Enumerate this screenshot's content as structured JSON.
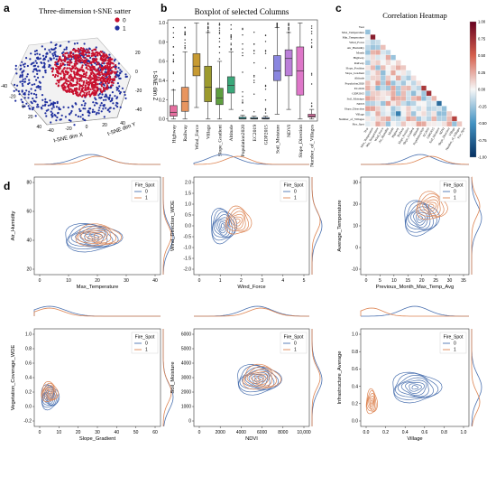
{
  "panels": {
    "a": "a",
    "b": "b",
    "c": "c",
    "d": "d"
  },
  "tsne": {
    "title": "Three-dimension t-SNE satter",
    "legend": [
      {
        "label": "0",
        "color": "#c8102e"
      },
      {
        "label": "1",
        "color": "#1f2f9e"
      }
    ],
    "xlabel": "t-SNE dim X",
    "ylabel": "t-SNE dim Y",
    "zlabel": "t-SNE dim Z",
    "x_ticks": [
      "-40",
      "-20",
      "0",
      "20",
      "40"
    ],
    "y_ticks": [
      "-40",
      "-20",
      "0",
      "20",
      "40"
    ],
    "z_ticks": [
      "20",
      "0",
      "-20",
      "-40"
    ]
  },
  "boxplot": {
    "title": "Boxplot of selected Columns",
    "y_ticks": [
      "0.0",
      "0.2",
      "0.4",
      "0.6",
      "0.8",
      "1.0"
    ],
    "columns": [
      {
        "name": "Highway",
        "color": "#e66fa0",
        "q1": 0.03,
        "median": 0.07,
        "q3": 0.14,
        "wlo": 0.0,
        "whi": 0.3
      },
      {
        "name": "Railway",
        "color": "#e8955f",
        "q1": 0.08,
        "median": 0.18,
        "q3": 0.33,
        "wlo": 0.0,
        "whi": 0.7
      },
      {
        "name": "Wind_Force",
        "color": "#c79a32",
        "q1": 0.45,
        "median": 0.55,
        "q3": 0.68,
        "wlo": 0.12,
        "whi": 1.0
      },
      {
        "name": "Village",
        "color": "#9c9a2e",
        "q1": 0.18,
        "median": 0.33,
        "q3": 0.55,
        "wlo": 0.0,
        "whi": 0.9
      },
      {
        "name": "Slope_Gradient",
        "color": "#5e9e3f",
        "q1": 0.15,
        "median": 0.22,
        "q3": 0.32,
        "wlo": 0.0,
        "whi": 0.6
      },
      {
        "name": "Altitude",
        "color": "#3aa87a",
        "q1": 0.27,
        "median": 0.35,
        "q3": 0.44,
        "wlo": 0.1,
        "whi": 0.7
      },
      {
        "name": "Population2020",
        "color": "#37a3a3",
        "q1": 0.0,
        "median": 0.005,
        "q3": 0.02,
        "wlo": 0.0,
        "whi": 0.04
      },
      {
        "name": "EC2019",
        "color": "#3f9fc4",
        "q1": 0.0,
        "median": 0.005,
        "q3": 0.015,
        "wlo": 0.0,
        "whi": 0.03
      },
      {
        "name": "GDP2015",
        "color": "#5b93d8",
        "q1": 0.0,
        "median": 0.005,
        "q3": 0.015,
        "wlo": 0.0,
        "whi": 0.03
      },
      {
        "name": "Soil_Moisture",
        "color": "#8a86e0",
        "q1": 0.4,
        "median": 0.5,
        "q3": 0.66,
        "wlo": 0.05,
        "whi": 0.95
      },
      {
        "name": "NDVI",
        "color": "#bb7fd9",
        "q1": 0.45,
        "median": 0.63,
        "q3": 0.72,
        "wlo": 0.1,
        "whi": 0.9
      },
      {
        "name": "Slope_Direction",
        "color": "#de77c9",
        "q1": 0.25,
        "median": 0.5,
        "q3": 0.75,
        "wlo": 0.0,
        "whi": 1.0
      },
      {
        "name": "Number_of_Villages",
        "color": "#e96fa9",
        "q1": 0.02,
        "median": 0.03,
        "q3": 0.05,
        "wlo": 0.0,
        "whi": 0.1
      }
    ]
  },
  "heatmap": {
    "title": "Correlation Heatmap",
    "labels": [
      "Year",
      "Max_Temperature",
      "Min_Temperature",
      "Wind_Force",
      "Air_Humidity",
      "Month",
      "Highway",
      "Railway",
      "Slope_Position",
      "Slope_Gradient",
      "Altitude",
      "Population2020",
      "EC2019",
      "GDP2015",
      "Soil_Moisture",
      "NDVI",
      "Slope_Direction",
      "Village",
      "Number_of_Villages",
      "Fire_Spot"
    ],
    "colorbar_ticks": [
      "1.00",
      "0.75",
      "0.50",
      "0.25",
      "0.00",
      "-0.25",
      "-0.50",
      "-0.75",
      "-1.00"
    ]
  },
  "kde_plots": [
    {
      "xlabel": "Max_Temperature",
      "ylabel": "Air_Humidity",
      "xticks": [
        "0",
        "10",
        "20",
        "30",
        "40"
      ],
      "yticks": [
        "20",
        "40",
        "60",
        "80"
      ],
      "legend_title": "Fire_Spot",
      "legend": [
        "0",
        "1"
      ]
    },
    {
      "xlabel": "Wind_Force",
      "ylabel": "Wind_Direction_WDE",
      "xticks": [
        "0",
        "1",
        "2",
        "3",
        "4",
        "5"
      ],
      "yticks": [
        "-2.0",
        "-1.5",
        "-1.0",
        "-0.5",
        "0.0",
        "0.5",
        "1.0",
        "1.5",
        "2.0"
      ],
      "legend_title": "Fire_Spot",
      "legend": [
        "0",
        "1"
      ]
    },
    {
      "xlabel": "Previous_Month_Max_Temp_Avg",
      "ylabel": "Average_Temperature",
      "xticks": [
        "0",
        "5",
        "10",
        "15",
        "20",
        "25",
        "30",
        "35"
      ],
      "yticks": [
        "-10",
        "0",
        "10",
        "20",
        "30"
      ],
      "legend_title": "Fire_Spot",
      "legend": [
        "0",
        "1"
      ]
    },
    {
      "xlabel": "Slope_Gradient",
      "ylabel": "Vegetation_Coverage_WDE",
      "xticks": [
        "0",
        "10",
        "20",
        "30",
        "40",
        "50",
        "60"
      ],
      "yticks": [
        "-0.2",
        "0.0",
        "0.2",
        "0.4",
        "0.6",
        "0.8",
        "1.0"
      ],
      "legend_title": "Fire_Spot",
      "legend": [
        "0",
        "1"
      ]
    },
    {
      "xlabel": "NDVI",
      "ylabel": "Soil_Moisture",
      "xticks": [
        "0",
        "2000",
        "4000",
        "6000",
        "8000",
        "10,000"
      ],
      "yticks": [
        "0",
        "1000",
        "2000",
        "3000",
        "4000",
        "5000",
        "6000"
      ],
      "legend_title": "Fire_Spot",
      "legend": [
        "0",
        "1"
      ]
    },
    {
      "xlabel": "Village",
      "ylabel": "Infrastructure_Average",
      "xticks": [
        "0.0",
        "0.2",
        "0.4",
        "0.6",
        "0.8",
        "1.0"
      ],
      "yticks": [
        "0.0",
        "0.2",
        "0.4",
        "0.6",
        "0.8",
        "1.0"
      ],
      "legend_title": "Fire_Spot",
      "legend": [
        "0",
        "1"
      ]
    }
  ],
  "colors": {
    "class0": "#4c72b0",
    "class1": "#dd8452",
    "red": "#c8102e",
    "blue": "#1f2f9e"
  },
  "chart_data": [
    {
      "type": "scatter",
      "title": "Three-dimension t-SNE satter",
      "xlabel": "t-SNE dim X",
      "ylabel": "t-SNE dim Y",
      "zlabel": "t-SNE dim Z",
      "xlim": [
        -40,
        40
      ],
      "ylim": [
        -40,
        40
      ],
      "zlim": [
        -40,
        20
      ],
      "series": [
        {
          "name": "0"
        },
        {
          "name": "1"
        }
      ]
    },
    {
      "type": "box",
      "title": "Boxplot of selected Columns",
      "ylim": [
        0,
        1
      ],
      "categories": [
        "Highway",
        "Railway",
        "Wind_Force",
        "Village",
        "Slope_Gradient",
        "Altitude",
        "Population2020",
        "EC2019",
        "GDP2015",
        "Soil_Moisture",
        "NDVI",
        "Slope_Direction",
        "Number_of_Villages"
      ],
      "medians": [
        0.07,
        0.18,
        0.55,
        0.33,
        0.22,
        0.35,
        0.005,
        0.005,
        0.005,
        0.5,
        0.63,
        0.5,
        0.03
      ]
    },
    {
      "type": "heatmap",
      "title": "Correlation Heatmap",
      "range": [
        -1,
        1
      ]
    },
    {
      "type": "contour",
      "panels": [
        "Max_Temperature vs Air_Humidity",
        "Wind_Force vs Wind_Direction_WDE",
        "Previous_Month_Max_Temp_Avg vs Average_Temperature",
        "Slope_Gradient vs Vegetation_Coverage_WDE",
        "NDVI vs Soil_Moisture",
        "Village vs Infrastructure_Average"
      ],
      "series": [
        {
          "name": "0"
        },
        {
          "name": "1"
        }
      ]
    }
  ]
}
